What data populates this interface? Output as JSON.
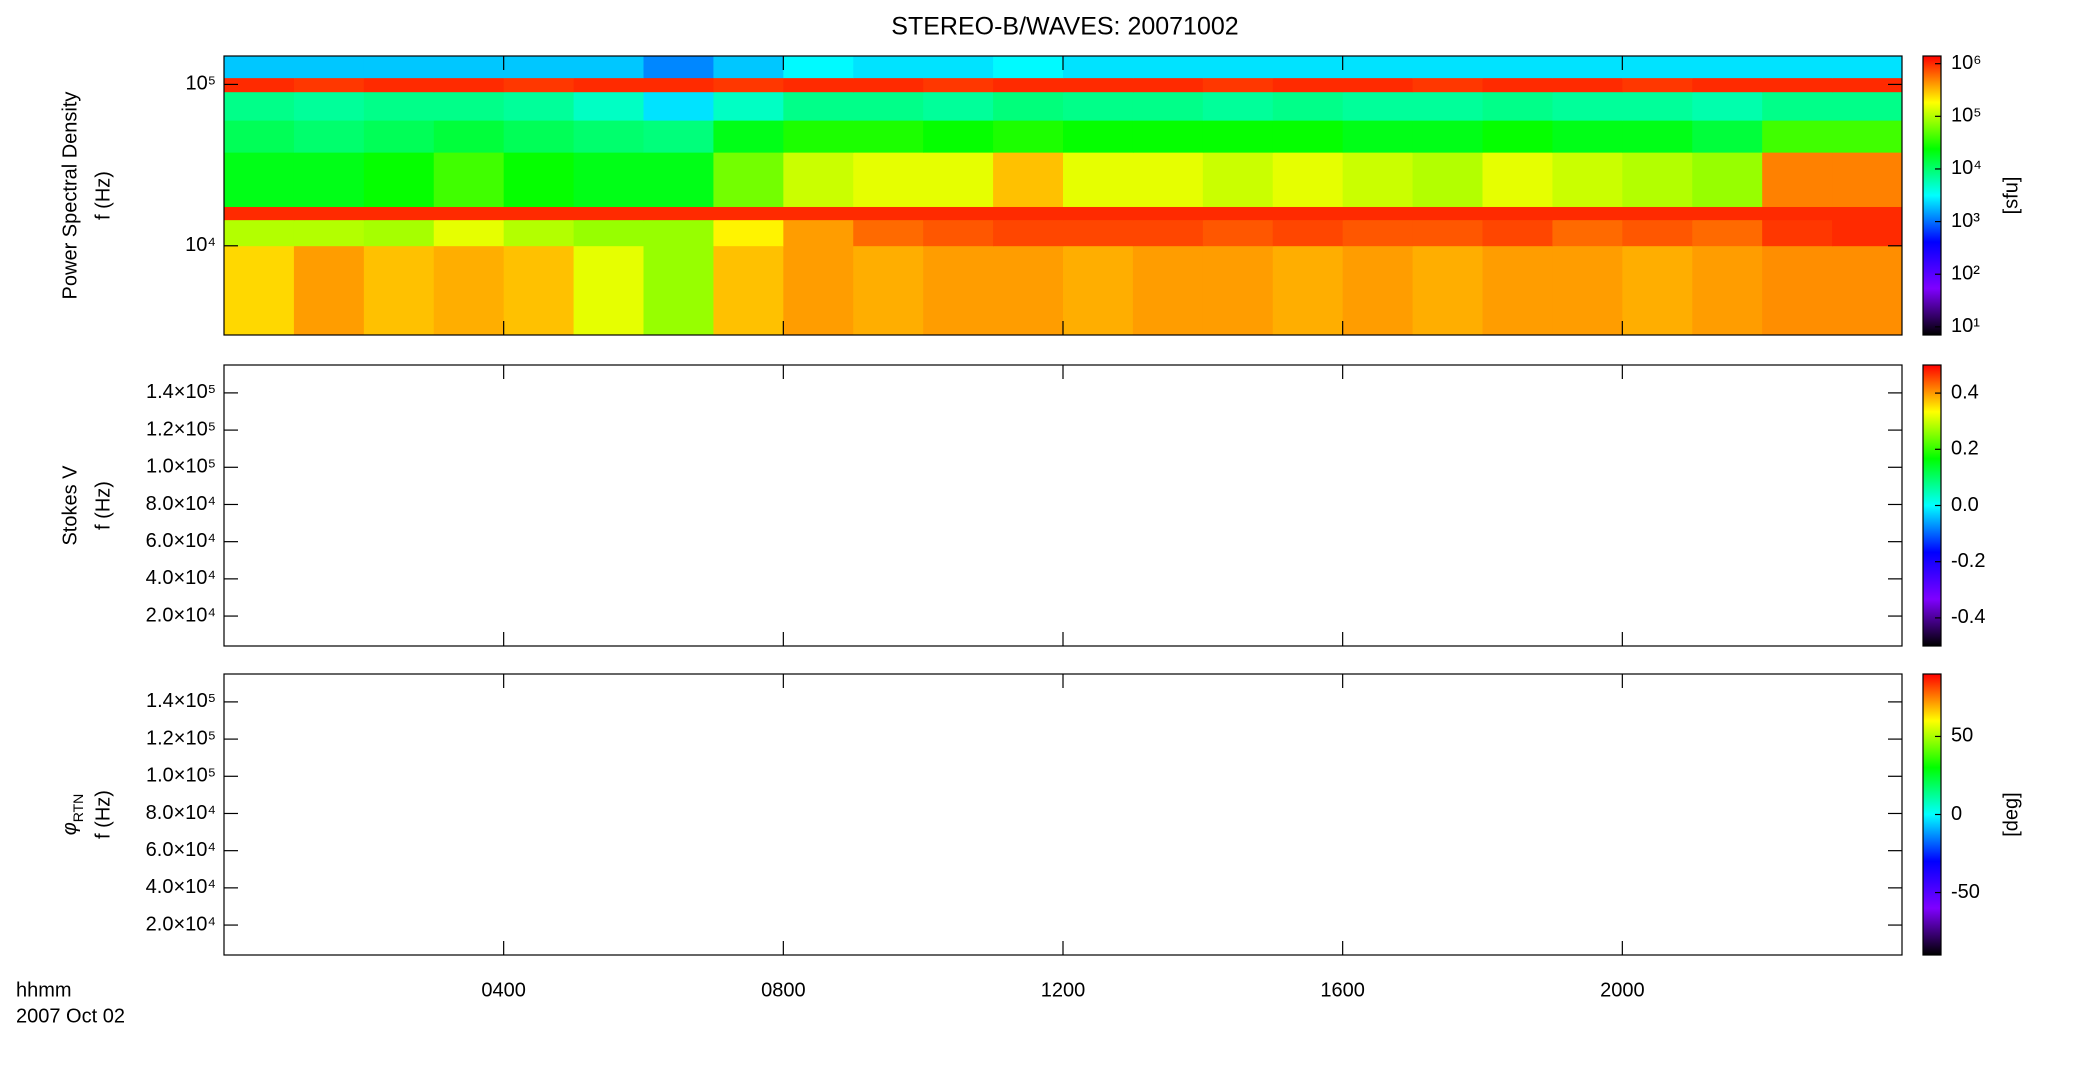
{
  "chart_data": [
    {
      "type": "heatmap",
      "title": "STEREO-B/WAVES: 20071002",
      "ylabel": [
        "Power Spectral Density",
        "f (Hz)"
      ],
      "xlim": [
        0,
        24
      ],
      "ylim": [
        2800,
        150000
      ],
      "ylog": true,
      "yticks": [
        {
          "value": 10000,
          "label": "10⁴"
        },
        {
          "value": 100000,
          "label": "10⁵"
        }
      ],
      "time_bins": [
        0,
        1,
        2,
        3,
        4,
        5,
        6,
        7,
        8,
        9,
        10,
        11,
        12,
        13,
        14,
        15,
        16,
        17,
        18,
        19,
        20,
        21,
        22,
        23,
        24
      ],
      "freq_bins": [
        2800,
        10000,
        14500,
        17500,
        38000,
        60000,
        90000,
        110000,
        150000
      ],
      "z": [
        [
          250000,
          400000,
          300000,
          350000,
          300000,
          150000,
          80000,
          300000,
          400000,
          350000,
          400000,
          400000,
          350000,
          400000,
          400000,
          350000,
          400000,
          350000,
          400000,
          400000,
          350000,
          400000,
          450000,
          450000
        ],
        [
          100000,
          100000,
          90000,
          150000,
          100000,
          80000,
          80000,
          200000,
          400000,
          600000,
          700000,
          800000,
          800000,
          800000,
          700000,
          800000,
          700000,
          700000,
          800000,
          600000,
          700000,
          600000,
          900000,
          1000000
        ],
        [
          1000000,
          1000000,
          1000000,
          1000000,
          1000000,
          1000000,
          1000000,
          1000000,
          1000000,
          1000000,
          1000000,
          1000000,
          1000000,
          1000000,
          1000000,
          1000000,
          1000000,
          1000000,
          1000000,
          1000000,
          1000000,
          1000000,
          1000000,
          1000000
        ],
        [
          20000,
          20000,
          25000,
          40000,
          25000,
          20000,
          20000,
          60000,
          120000,
          150000,
          150000,
          300000,
          150000,
          150000,
          120000,
          150000,
          120000,
          100000,
          150000,
          120000,
          100000,
          80000,
          500000,
          500000
        ],
        [
          12000,
          10000,
          12000,
          15000,
          12000,
          10000,
          9000,
          20000,
          30000,
          30000,
          25000,
          30000,
          25000,
          25000,
          25000,
          25000,
          20000,
          20000,
          25000,
          20000,
          20000,
          15000,
          40000,
          40000
        ],
        [
          8000,
          7000,
          8000,
          8000,
          7000,
          5000,
          2500,
          5000,
          8000,
          8000,
          7000,
          9000,
          8000,
          8000,
          7000,
          8000,
          7000,
          7000,
          8000,
          7000,
          7000,
          6000,
          8000,
          8000
        ],
        [
          1000000,
          900000,
          1000000,
          1000000,
          900000,
          1000000,
          1000000,
          900000,
          1000000,
          1000000,
          900000,
          1000000,
          1000000,
          1000000,
          900000,
          1000000,
          1000000,
          900000,
          1000000,
          1000000,
          900000,
          1000000,
          1000000,
          1000000
        ],
        [
          2000,
          2000,
          2000,
          2000,
          2000,
          2000,
          1200,
          2000,
          3000,
          2500,
          2500,
          3000,
          2500,
          2500,
          2500,
          2500,
          2500,
          2500,
          2500,
          2500,
          2500,
          2500,
          2500,
          2500
        ]
      ],
      "zlim": [
        7,
        1400000
      ],
      "zlog": true,
      "zlabel": "[sfu]",
      "zticks": [
        {
          "value": 10,
          "label": "10¹"
        },
        {
          "value": 100,
          "label": "10²"
        },
        {
          "value": 1000,
          "label": "10³"
        },
        {
          "value": 10000,
          "label": "10⁴"
        },
        {
          "value": 100000,
          "label": "10⁵"
        },
        {
          "value": 1000000,
          "label": "10⁶"
        }
      ],
      "colorscale": [
        "#000000",
        "#7f00ff",
        "#0000ff",
        "#00ffff",
        "#00ff00",
        "#ffff00",
        "#ff0000"
      ]
    },
    {
      "type": "heatmap",
      "ylabel": [
        "Stokes V",
        "f (Hz)"
      ],
      "xlim": [
        0,
        24
      ],
      "ylim": [
        3900,
        155000
      ],
      "yticks": [
        {
          "value": 20000,
          "label": "2.0×10⁴"
        },
        {
          "value": 40000,
          "label": "4.0×10⁴"
        },
        {
          "value": 60000,
          "label": "6.0×10⁴"
        },
        {
          "value": 80000,
          "label": "8.0×10⁴"
        },
        {
          "value": 100000,
          "label": "1.0×10⁵"
        },
        {
          "value": 120000,
          "label": "1.2×10⁵"
        },
        {
          "value": 140000,
          "label": "1.4×10⁵"
        }
      ],
      "zlim": [
        -0.5,
        0.5
      ],
      "zticks": [
        -0.4,
        -0.2,
        {
          "value": 0,
          "label": "0.0"
        },
        0.2,
        0.4
      ],
      "colorscale": [
        "#000000",
        "#7f00ff",
        "#0000ff",
        "#00ffff",
        "#00ff00",
        "#ffff00",
        "#ff0000"
      ]
    },
    {
      "type": "heatmap",
      "ylabel_symbol": "φ",
      "ylabel_subscript": "RTN",
      "ylabel": [
        "f (Hz)"
      ],
      "xlim": [
        0,
        24
      ],
      "ylim": [
        3900,
        155000
      ],
      "yticks": [
        {
          "value": 20000,
          "label": "2.0×10⁴"
        },
        {
          "value": 40000,
          "label": "4.0×10⁴"
        },
        {
          "value": 60000,
          "label": "6.0×10⁴"
        },
        {
          "value": 80000,
          "label": "8.0×10⁴"
        },
        {
          "value": 100000,
          "label": "1.0×10⁵"
        },
        {
          "value": 120000,
          "label": "1.2×10⁵"
        },
        {
          "value": 140000,
          "label": "1.4×10⁵"
        }
      ],
      "xticks": [
        {
          "value": 4,
          "label": "0400"
        },
        {
          "value": 8,
          "label": "0800"
        },
        {
          "value": 12,
          "label": "1200"
        },
        {
          "value": 16,
          "label": "1600"
        },
        {
          "value": 20,
          "label": "2000"
        }
      ],
      "xlabel": "hhmm",
      "date": "2007 Oct 02",
      "zlim": [
        -90,
        90
      ],
      "zlabel": "[deg]",
      "zticks": [
        -50,
        0,
        50
      ],
      "colorscale": [
        "#000000",
        "#7f00ff",
        "#0000ff",
        "#00ffff",
        "#00ff00",
        "#ffff00",
        "#ff0000"
      ]
    }
  ]
}
